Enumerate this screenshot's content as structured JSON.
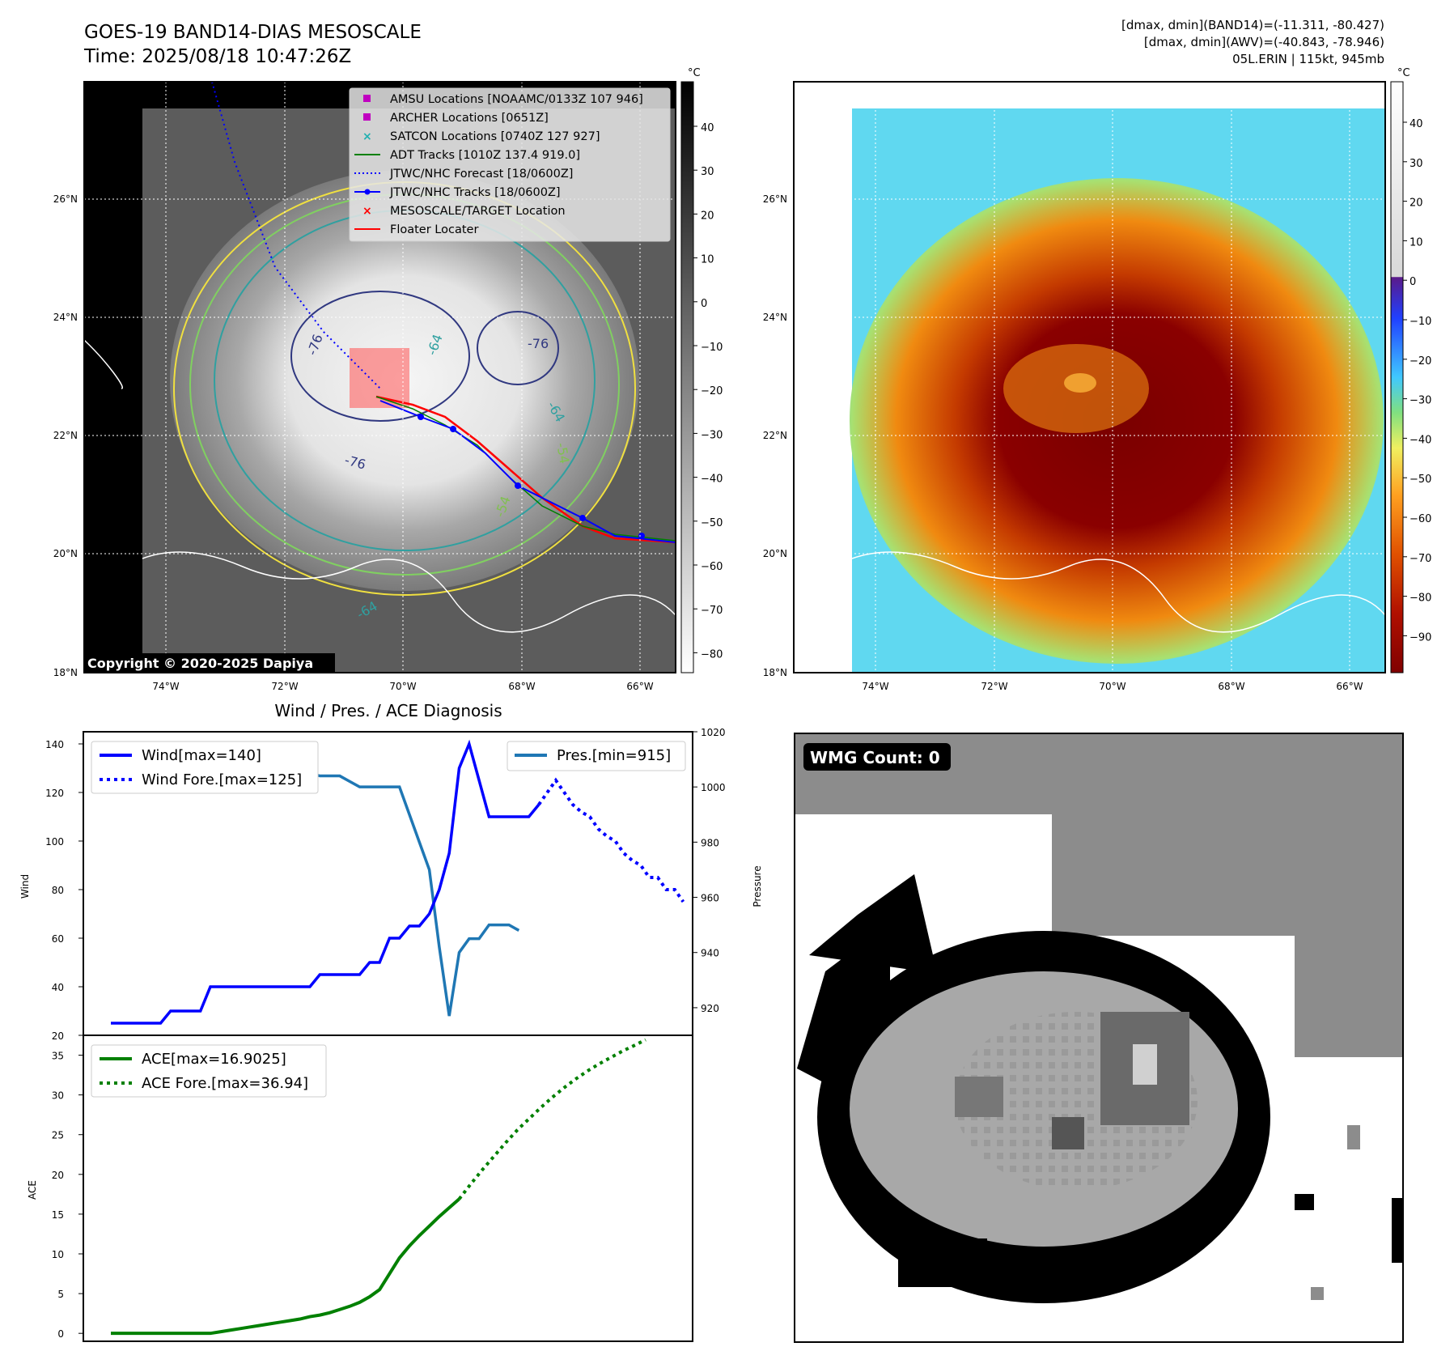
{
  "header": {
    "title_line1": "GOES-19 BAND14-DIAS MESOSCALE",
    "title_line2": "Time: 2025/08/18 10:47:26Z",
    "right_line1": "[dmax, dmin](BAND14)=(-11.311, -80.427)",
    "right_line2": "[dmax, dmin](AWV)=(-40.843, -78.946)",
    "right_line3": "05L.ERIN | 115kt, 945mb"
  },
  "map_axes": {
    "lat_labels": [
      "18°N",
      "20°N",
      "22°N",
      "24°N",
      "26°N"
    ],
    "lon_labels": [
      "74°W",
      "72°W",
      "70°W",
      "68°W",
      "66°W"
    ],
    "copyright": "Copyright © 2020-2025 Dapiya",
    "contour_labels": [
      "-76",
      "-76",
      "-76",
      "-64",
      "-64",
      "-64",
      "-54",
      "-54"
    ]
  },
  "colorbar_gray": {
    "unit": "°C",
    "ticks": [
      "40",
      "30",
      "20",
      "10",
      "0",
      "−10",
      "−20",
      "−30",
      "−40",
      "−50",
      "−60",
      "−70",
      "−80"
    ]
  },
  "colorbar_color": {
    "unit": "°C",
    "ticks": [
      "40",
      "30",
      "20",
      "10",
      "0",
      "−10",
      "−20",
      "−30",
      "−40",
      "−50",
      "−60",
      "−70",
      "−80",
      "−90"
    ]
  },
  "legend_map": [
    {
      "label": "AMSU Locations [NOAAMC/0133Z 107 946]",
      "color": "#c000c0",
      "marker": "square"
    },
    {
      "label": "ARCHER Locations [0651Z]",
      "color": "#c000c0",
      "marker": "square"
    },
    {
      "label": "SATCON Locations [0740Z 127 927]",
      "color": "#20b0b0",
      "marker": "x"
    },
    {
      "label": "ADT Tracks [1010Z 137.4 919.0]",
      "color": "#008000",
      "marker": "line"
    },
    {
      "label": "JTWC/NHC Forecast [18/0600Z]",
      "color": "#0000ff",
      "marker": "dotted"
    },
    {
      "label": "JTWC/NHC Tracks [18/0600Z]",
      "color": "#0000ff",
      "marker": "linedot"
    },
    {
      "label": "MESOSCALE/TARGET Location",
      "color": "#ff0000",
      "marker": "x"
    },
    {
      "label": "Floater Locater",
      "color": "#ff0000",
      "marker": "line"
    }
  ],
  "wmg": {
    "label": "WMG Count: 0"
  },
  "chart_data": [
    {
      "type": "line",
      "title": "Wind / Pres. / ACE Diagnosis",
      "ylabel": "Wind",
      "ylim": [
        20,
        145
      ],
      "y_ticks": [
        "20",
        "40",
        "60",
        "80",
        "100",
        "120",
        "140"
      ],
      "series": [
        {
          "name": "Wind[max=140]",
          "color": "#0000ff",
          "style": "solid",
          "values": [
            25,
            25,
            25,
            25,
            25,
            25,
            30,
            30,
            30,
            30,
            40,
            40,
            40,
            40,
            40,
            40,
            40,
            40,
            40,
            40,
            40,
            45,
            45,
            45,
            45,
            45,
            50,
            50,
            60,
            60,
            65,
            65,
            70,
            80,
            95,
            130,
            140,
            125,
            110,
            110,
            110,
            110,
            110,
            115
          ]
        },
        {
          "name": "Wind Fore.[max=125]",
          "color": "#0000ff",
          "style": "dotted",
          "values": [
            115,
            120,
            125,
            120,
            115,
            112,
            110,
            105,
            102,
            100,
            95,
            92,
            90,
            85,
            85,
            80,
            80,
            75
          ]
        }
      ],
      "secondary": {
        "ylabel": "Pressure",
        "ylim": [
          910,
          1020
        ],
        "y_ticks": [
          "920",
          "940",
          "960",
          "980",
          "1000",
          "1020"
        ],
        "series": [
          {
            "name": "Pres.[min=915]",
            "color": "#1f77b4",
            "style": "solid",
            "values": [
              1015,
              1015,
              1015,
              1009,
              1008,
              1007,
              1007,
              1007,
              1007,
              1007,
              1007,
              1007,
              1006,
              1006,
              1006,
              1006,
              1006,
              1007,
              1007,
              1006,
              1005,
              1004,
              1004,
              1004,
              1002,
              1000,
              1000,
              1000,
              1000,
              1000,
              990,
              980,
              970,
              942,
              917,
              940,
              945,
              945,
              950,
              950,
              950,
              948
            ]
          }
        ]
      }
    },
    {
      "type": "line",
      "ylabel": "ACE",
      "ylim": [
        -1,
        37.5
      ],
      "y_ticks": [
        "0",
        "5",
        "10",
        "15",
        "20",
        "25",
        "30",
        "35"
      ],
      "series": [
        {
          "name": "ACE[max=16.9025]",
          "color": "#008000",
          "style": "solid",
          "values": [
            0,
            0,
            0,
            0,
            0,
            0,
            0,
            0,
            0,
            0,
            0,
            0.2,
            0.4,
            0.6,
            0.8,
            1.0,
            1.2,
            1.4,
            1.6,
            1.8,
            2.1,
            2.3,
            2.6,
            3.0,
            3.4,
            3.9,
            4.6,
            5.5,
            7.5,
            9.5,
            11.0,
            12.3,
            13.5,
            14.7,
            15.8,
            16.9
          ]
        },
        {
          "name": "ACE Fore.[max=36.94]",
          "color": "#008000",
          "style": "dotted",
          "values": [
            16.9,
            18.8,
            20.6,
            22.3,
            24.0,
            25.6,
            27.0,
            28.4,
            29.7,
            30.9,
            32.0,
            33.0,
            33.9,
            34.7,
            35.5,
            36.2,
            36.94
          ]
        }
      ]
    }
  ]
}
